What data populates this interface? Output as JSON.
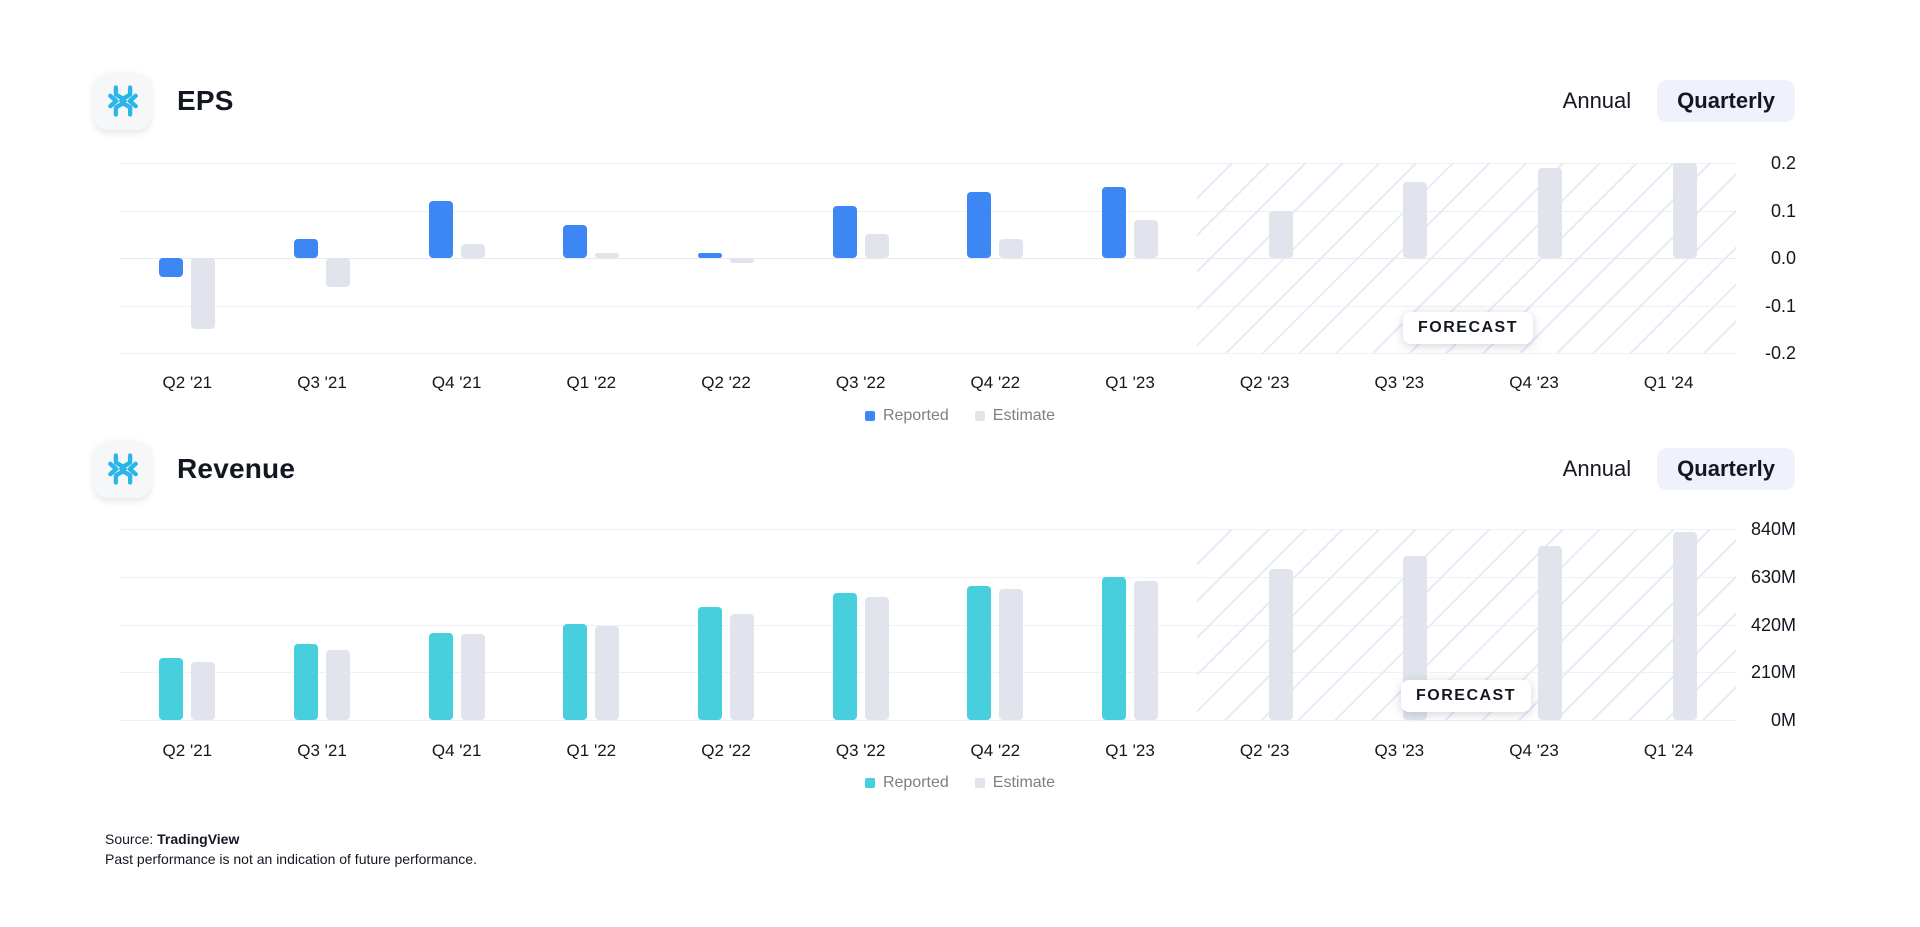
{
  "toggle": {
    "annual_label": "Annual",
    "quarterly_label": "Quarterly",
    "active": "Quarterly"
  },
  "footer": {
    "source_label": "Source:",
    "source_name": "TradingView",
    "disclaimer": "Past performance is not an indication of future performance."
  },
  "logo_icon": "snowflake-logo",
  "brand_color": "#2bb5e8",
  "chart_data": [
    {
      "id": "eps",
      "type": "bar",
      "title": "EPS",
      "categories": [
        "Q2 '21",
        "Q3 '21",
        "Q4 '21",
        "Q1 '22",
        "Q2 '22",
        "Q3 '22",
        "Q4 '22",
        "Q1 '23",
        "Q2 '23",
        "Q3 '23",
        "Q4 '23",
        "Q1 '24"
      ],
      "series": [
        {
          "name": "Reported",
          "color": "#3d87f5",
          "values": [
            -0.04,
            0.04,
            0.12,
            0.07,
            0.01,
            0.11,
            0.14,
            0.15,
            null,
            null,
            null,
            null
          ]
        },
        {
          "name": "Estimate",
          "color": "#e1e4ec",
          "values": [
            -0.15,
            -0.06,
            0.03,
            0.01,
            -0.01,
            0.05,
            0.04,
            0.08,
            0.1,
            0.16,
            0.19,
            0.2
          ]
        }
      ],
      "y_ticks": [
        {
          "label": "0.2",
          "value": 0.2
        },
        {
          "label": "0.1",
          "value": 0.1
        },
        {
          "label": "0.0",
          "value": 0.0
        },
        {
          "label": "-0.1",
          "value": -0.1
        },
        {
          "label": "-0.2",
          "value": -0.2
        }
      ],
      "ylim": [
        -0.2,
        0.2
      ],
      "grid": true,
      "legend_position": "bottom-center",
      "forecast_start_index": 8,
      "forecast_label": "FORECAST"
    },
    {
      "id": "revenue",
      "type": "bar",
      "title": "Revenue",
      "categories": [
        "Q2 '21",
        "Q3 '21",
        "Q4 '21",
        "Q1 '22",
        "Q2 '22",
        "Q3 '22",
        "Q4 '22",
        "Q1 '23",
        "Q2 '23",
        "Q3 '23",
        "Q4 '23",
        "Q1 '24"
      ],
      "unit": "M",
      "series": [
        {
          "name": "Reported",
          "color": "#48cfdd",
          "values": [
            272,
            334,
            384,
            422,
            497,
            557,
            589,
            630,
            null,
            null,
            null,
            null
          ]
        },
        {
          "name": "Estimate",
          "color": "#e1e4ec",
          "values": [
            257,
            306,
            380,
            415,
            467,
            540,
            576,
            610,
            662,
            722,
            766,
            825
          ]
        }
      ],
      "y_ticks": [
        {
          "label": "840M",
          "value": 840
        },
        {
          "label": "630M",
          "value": 630
        },
        {
          "label": "420M",
          "value": 420
        },
        {
          "label": "210M",
          "value": 210
        },
        {
          "label": "0M",
          "value": 0
        }
      ],
      "ylim": [
        0,
        840
      ],
      "grid": true,
      "legend_position": "bottom-center",
      "forecast_start_index": 8,
      "forecast_label": "FORECAST"
    }
  ]
}
